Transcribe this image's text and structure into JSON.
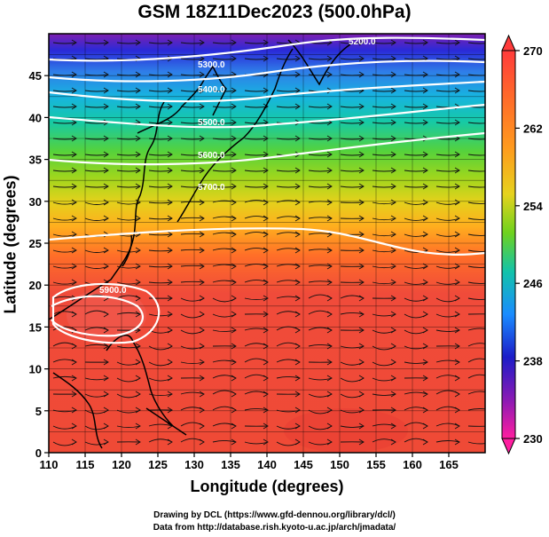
{
  "title": "GSM 18Z11Dec2023 (500.0hPa)",
  "map": {
    "xlabel": "Longitude (degrees)",
    "ylabel": "Latitude  (degrees)",
    "lon_range": [
      110,
      170
    ],
    "lat_range": [
      0,
      50
    ],
    "x_ticks": [
      "110",
      "115",
      "120",
      "125",
      "130",
      "135",
      "140",
      "145",
      "150",
      "155",
      "160",
      "165"
    ],
    "y_ticks": [
      "0",
      "5",
      "10",
      "15",
      "20",
      "25",
      "30",
      "35",
      "40",
      "45"
    ],
    "contour_labels": [
      "5200.0",
      "5300.0",
      "5400.0",
      "5500.0",
      "5600.0",
      "5700.0",
      "5900.0"
    ]
  },
  "colorbar": {
    "ticks": [
      "270",
      "262",
      "254",
      "246",
      "238",
      "230"
    ],
    "colors": [
      "#ff3b3b",
      "#ff8a1e",
      "#ffd21e",
      "#6ed21e",
      "#12c3aa",
      "#1a8cff",
      "#1c1cc8",
      "#8a1ab4",
      "#ff1ea0"
    ]
  },
  "credits": {
    "line1": "Drawing by DCL (https://www.gfd-dennou.org/library/dcl/)",
    "line2": "Data from http://database.rish.kyoto-u.ac.jp/arch/jmadata/"
  }
}
